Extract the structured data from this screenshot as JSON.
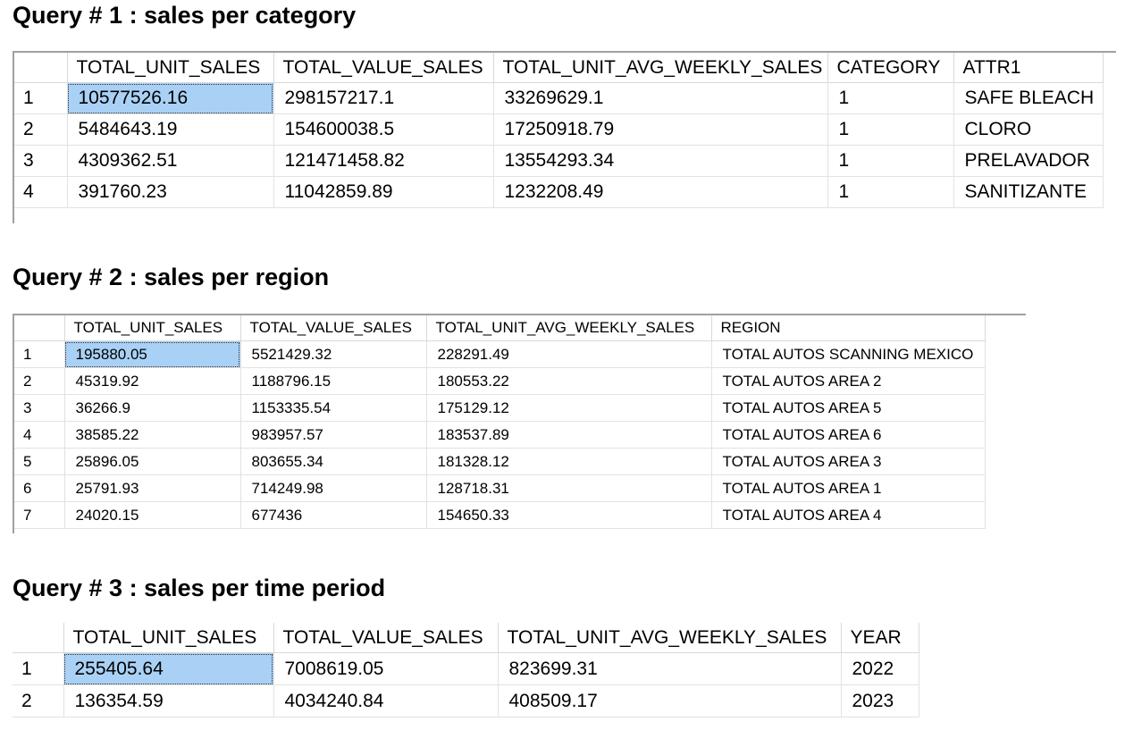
{
  "queries": [
    {
      "title": "Query # 1 : sales per category",
      "columns": [
        "",
        "TOTAL_UNIT_SALES",
        "TOTAL_VALUE_SALES",
        "TOTAL_UNIT_AVG_WEEKLY_SALES",
        "CATEGORY",
        "ATTR1"
      ],
      "rows": [
        [
          "1",
          "10577526.16",
          "298157217.1",
          "33269629.1",
          "1",
          "SAFE BLEACH"
        ],
        [
          "2",
          "5484643.19",
          "154600038.5",
          "17250918.79",
          "1",
          "CLORO"
        ],
        [
          "3",
          "4309362.51",
          "121471458.82",
          "13554293.34",
          "1",
          "PRELAVADOR"
        ],
        [
          "4",
          "391760.23",
          "11042859.89",
          "1232208.49",
          "1",
          "SANITIZANTE"
        ]
      ]
    },
    {
      "title": "Query # 2 : sales per region",
      "columns": [
        "",
        "TOTAL_UNIT_SALES",
        "TOTAL_VALUE_SALES",
        "TOTAL_UNIT_AVG_WEEKLY_SALES",
        "REGION"
      ],
      "rows": [
        [
          "1",
          "195880.05",
          "5521429.32",
          "228291.49",
          "TOTAL AUTOS SCANNING MEXICO"
        ],
        [
          "2",
          "45319.92",
          "1188796.15",
          "180553.22",
          "TOTAL AUTOS AREA 2"
        ],
        [
          "3",
          "36266.9",
          "1153335.54",
          "175129.12",
          "TOTAL AUTOS AREA 5"
        ],
        [
          "4",
          "38585.22",
          "983957.57",
          "183537.89",
          "TOTAL AUTOS AREA 6"
        ],
        [
          "5",
          "25896.05",
          "803655.34",
          "181328.12",
          "TOTAL AUTOS AREA 3"
        ],
        [
          "6",
          "25791.93",
          "714249.98",
          "128718.31",
          "TOTAL AUTOS AREA 1"
        ],
        [
          "7",
          "24020.15",
          "677436",
          "154650.33",
          "TOTAL AUTOS AREA 4"
        ]
      ]
    },
    {
      "title": "Query # 3 : sales per time period",
      "columns": [
        "",
        "TOTAL_UNIT_SALES",
        "TOTAL_VALUE_SALES",
        "TOTAL_UNIT_AVG_WEEKLY_SALES",
        "YEAR"
      ],
      "rows": [
        [
          "1",
          "255405.64",
          "7008619.05",
          "823699.31",
          "2022"
        ],
        [
          "2",
          "136354.59",
          "4034240.84",
          "408509.17",
          "2023"
        ]
      ]
    }
  ],
  "selection": {
    "row": 0,
    "column": 1,
    "color": "#a9d1f5"
  }
}
